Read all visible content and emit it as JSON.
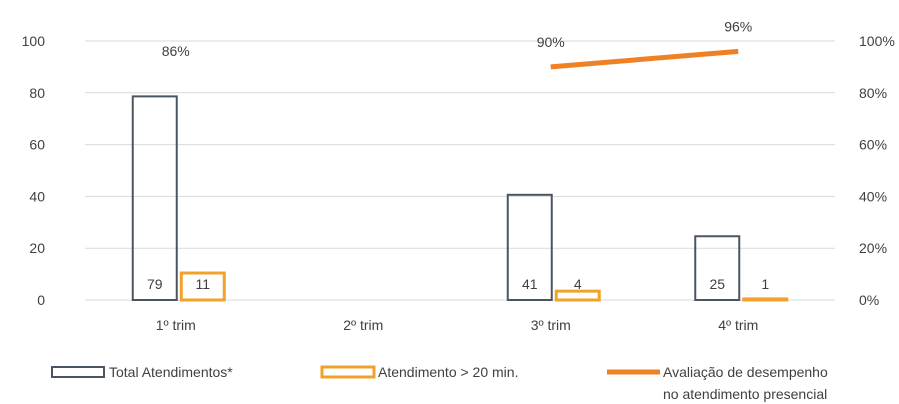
{
  "chart_data": {
    "type": "bar",
    "categories": [
      "1º trim",
      "2º trim",
      "3º trim",
      "4º trim"
    ],
    "series": [
      {
        "name": "Total Atendimentos*",
        "type": "bar",
        "axis": "left",
        "values": [
          79,
          null,
          41,
          25
        ],
        "labels": [
          "79",
          "",
          "41",
          "25"
        ],
        "color": "#4a5561"
      },
      {
        "name": "Atendimento > 20 min.",
        "type": "bar",
        "axis": "left",
        "values": [
          11,
          null,
          4,
          1
        ],
        "labels": [
          "11",
          "",
          "4",
          "1"
        ],
        "color": "#f0a32a"
      },
      {
        "name": "Avaliação de desempenho no atendimento presencial",
        "type": "line",
        "axis": "right",
        "values": [
          0.86,
          null,
          0.9,
          0.96
        ],
        "labels": [
          "86%",
          "",
          "90%",
          "96%"
        ],
        "color": "#f08024"
      }
    ],
    "y_left": {
      "ylim": [
        0,
        100
      ],
      "ticks": [
        "0",
        "20",
        "40",
        "60",
        "80",
        "100"
      ]
    },
    "y_right": {
      "ylim": [
        0,
        1
      ],
      "ticks": [
        "0%",
        "20%",
        "40%",
        "60%",
        "80%",
        "100%"
      ]
    },
    "grid": true,
    "legend": {
      "position": "bottom",
      "items": [
        {
          "label": "Total Atendimentos*"
        },
        {
          "label": "Atendimento > 20 min."
        },
        {
          "label_lines": [
            "Avaliação de desempenho",
            "no atendimento presencial"
          ]
        }
      ]
    }
  }
}
